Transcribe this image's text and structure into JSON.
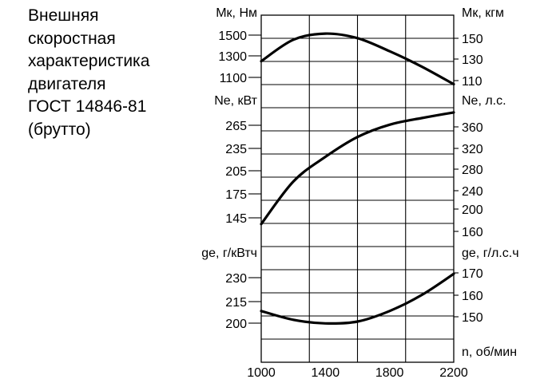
{
  "title_lines": [
    "Внешняя",
    "скоростная",
    "характеристика",
    "двигателя",
    "ГОСТ 14846-81",
    "(брутто)"
  ],
  "colors": {
    "line": "#000000",
    "grid": "#000000",
    "background": "#ffffff"
  },
  "chart_data": [
    {
      "type": "line",
      "name": "torque",
      "x": [
        1000,
        1200,
        1400,
        1600,
        1800,
        2000,
        2200
      ],
      "xlim": [
        1000,
        2200
      ],
      "ylabel_left": "Мк, Нм",
      "ylabel_right": "Мк, кгм",
      "left_ticks": [
        1500,
        1300,
        1100
      ],
      "right_ticks": [
        150,
        130,
        110
      ],
      "ylim": [
        1080,
        1600
      ],
      "y": [
        1300,
        1440,
        1480,
        1450,
        1365,
        1265,
        1150
      ]
    },
    {
      "type": "line",
      "name": "power",
      "x": [
        1000,
        1200,
        1400,
        1600,
        1800,
        2000,
        2200
      ],
      "xlim": [
        1000,
        2200
      ],
      "ylabel_left": "Ne, кВт",
      "ylabel_right": "Ne, л.с.",
      "left_ticks": [
        265,
        235,
        205,
        175,
        145
      ],
      "right_ticks": [
        360,
        320,
        280,
        240,
        200,
        160
      ],
      "ylim": [
        130,
        275
      ],
      "y": [
        147,
        192,
        218,
        239,
        252,
        259,
        265
      ]
    },
    {
      "type": "line",
      "name": "specific-consumption",
      "x": [
        1000,
        1200,
        1400,
        1600,
        1800,
        2000,
        2200
      ],
      "xlim": [
        1000,
        2200
      ],
      "ylabel_left": "ge, г/кВтч",
      "ylabel_right": "ge, г/л.с.ч",
      "left_ticks": [
        230,
        215,
        200
      ],
      "right_ticks": [
        170,
        160,
        150
      ],
      "ylim": [
        180,
        245
      ],
      "y": [
        209,
        204,
        202,
        203,
        209,
        218,
        230
      ]
    }
  ],
  "x_axis": {
    "label": "n, об/мин",
    "ticks": [
      "1000",
      "1400",
      "1800",
      "2200"
    ]
  }
}
